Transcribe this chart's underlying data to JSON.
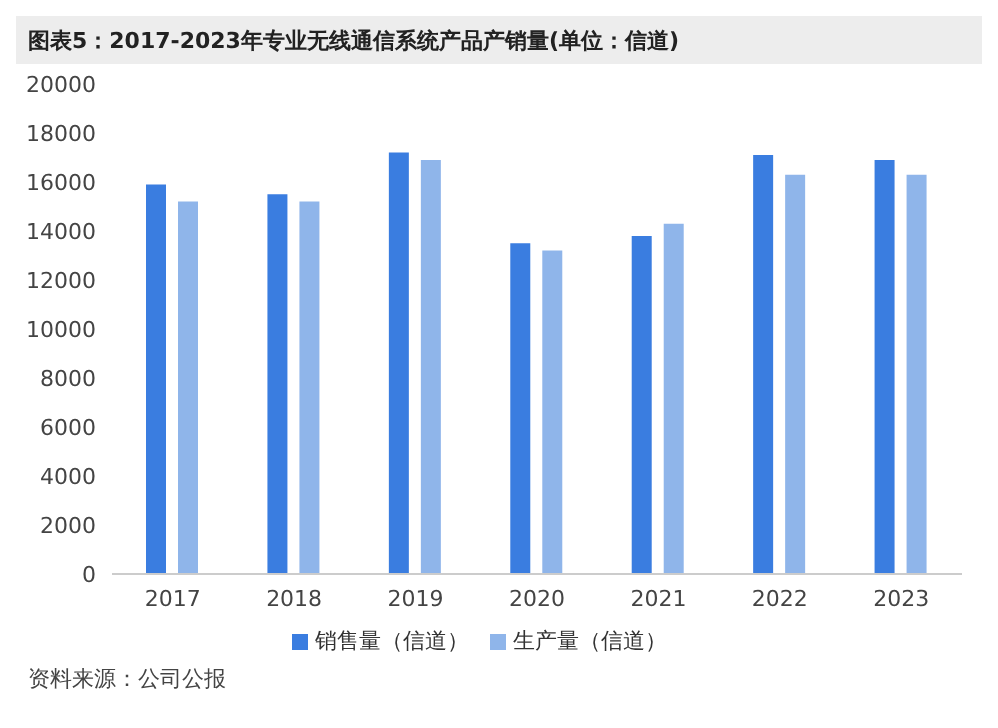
{
  "chart_data": {
    "type": "bar",
    "title": "图表5：2017-2023年专业无线通信系统产品产销量(单位：信道)",
    "categories": [
      "2017",
      "2018",
      "2019",
      "2020",
      "2021",
      "2022",
      "2023"
    ],
    "series": [
      {
        "name": "销售量（信道）",
        "color": "#3a7de0",
        "values": [
          15900,
          15500,
          17200,
          13500,
          13800,
          17100,
          16900
        ]
      },
      {
        "name": "生产量（信道）",
        "color": "#8fb5ea",
        "values": [
          15200,
          15200,
          16900,
          13200,
          14300,
          16300,
          16300
        ]
      }
    ],
    "ylim": [
      0,
      20000
    ],
    "yticks": [
      0,
      2000,
      4000,
      6000,
      8000,
      10000,
      12000,
      14000,
      16000,
      18000,
      20000
    ],
    "grid": false,
    "legend": "bottom",
    "annotations": [
      "资料来源：公司公报"
    ]
  }
}
